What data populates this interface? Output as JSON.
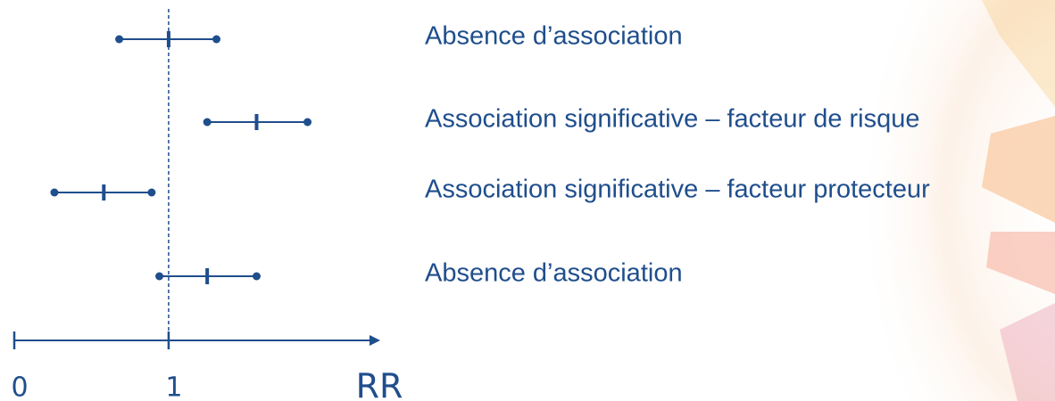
{
  "chart_data": {
    "type": "forest",
    "categories": [
      "Absence d’association",
      "Association significative – facteur de risque",
      "Association significative – facteur protecteur",
      "Absence d’association"
    ],
    "estimate": [
      1.0,
      1.57,
      0.58,
      1.25
    ],
    "lower": [
      0.68,
      1.25,
      0.26,
      0.94
    ],
    "upper": [
      1.31,
      1.9,
      0.89,
      1.57
    ],
    "color": "#1f4e8c",
    "xlim": [
      0,
      2.4
    ],
    "xticks": [
      0,
      1
    ],
    "xlabel": "RR"
  }
}
